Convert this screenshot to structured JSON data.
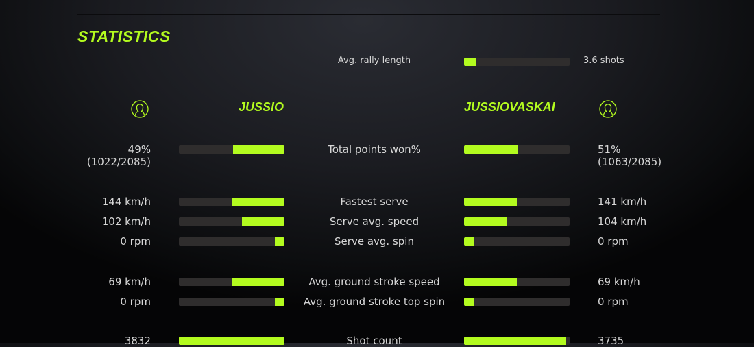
{
  "title": "STATISTICS",
  "accent_color": "#b3fb1f",
  "rally": {
    "label": "Avg. rally length",
    "value": "3.6 shots",
    "fraction": 0.12
  },
  "players": {
    "left": {
      "name": "JUSSIO",
      "icon": "user-icon"
    },
    "right": {
      "name": "JUSSIOVASKAI",
      "icon": "user-icon"
    }
  },
  "stats": [
    {
      "label": "Total points won%",
      "left": "49%",
      "left_sub": "(1022/2085)",
      "right": "51%",
      "right_sub": "(1063/2085)",
      "left_fraction": 0.49,
      "right_fraction": 0.51
    },
    {
      "label": "Fastest serve",
      "left": "144 km/h",
      "right": "141 km/h",
      "left_fraction": 0.5,
      "right_fraction": 0.5
    },
    {
      "label": "Serve avg. speed",
      "left": "102 km/h",
      "right": "104 km/h",
      "left_fraction": 0.4,
      "right_fraction": 0.4
    },
    {
      "label": "Serve avg. spin",
      "left": "0 rpm",
      "right": "0 rpm",
      "left_fraction": 0.09,
      "right_fraction": 0.09
    },
    {
      "label": "Avg. ground stroke speed",
      "left": "69 km/h",
      "right": "69 km/h",
      "left_fraction": 0.5,
      "right_fraction": 0.5
    },
    {
      "label": "Avg. ground stroke top spin",
      "left": "0 rpm",
      "right": "0 rpm",
      "left_fraction": 0.09,
      "right_fraction": 0.09
    },
    {
      "label": "Shot count",
      "left": "3832",
      "right": "3735",
      "left_fraction": 1.0,
      "right_fraction": 0.97
    }
  ]
}
